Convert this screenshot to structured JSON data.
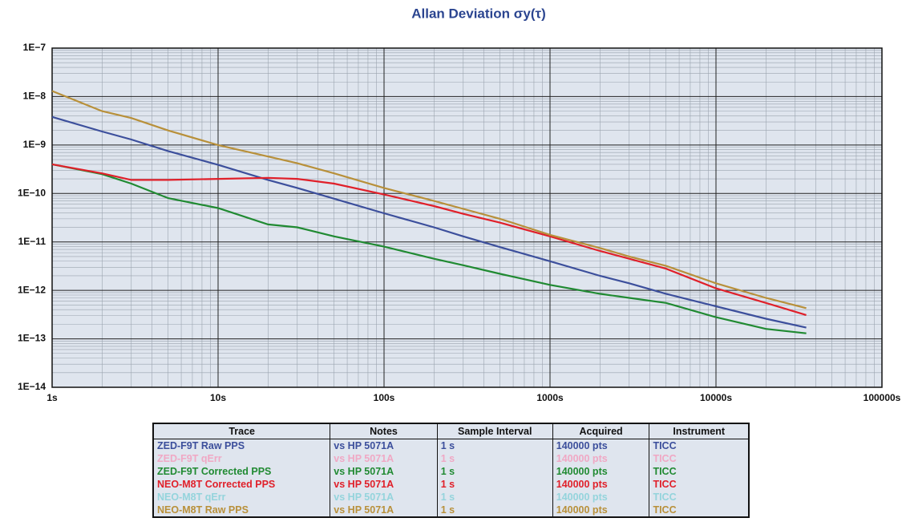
{
  "chart_data": {
    "type": "line",
    "title": "Allan Deviation σy(τ)",
    "log_x": true,
    "log_y": true,
    "grid": true,
    "minor_grid": true,
    "plot_background": "#dfe5ee",
    "x": [
      1,
      2,
      3,
      5,
      10,
      20,
      30,
      50,
      100,
      200,
      300,
      500,
      1000,
      2000,
      3000,
      5000,
      10000,
      20000,
      35000
    ],
    "xlim": [
      1,
      100000
    ],
    "xticks": [
      {
        "value": 1,
        "label": "1s"
      },
      {
        "value": 10,
        "label": "10s"
      },
      {
        "value": 100,
        "label": "100s"
      },
      {
        "value": 1000,
        "label": "1000s"
      },
      {
        "value": 10000,
        "label": "10000s"
      },
      {
        "value": 100000,
        "label": "100000s"
      }
    ],
    "ylim": [
      1e-14,
      1e-07
    ],
    "yticks": [
      {
        "value": 1e-14,
        "label": "1E−14"
      },
      {
        "value": 1e-13,
        "label": "1E−13"
      },
      {
        "value": 1e-12,
        "label": "1E−12"
      },
      {
        "value": 1e-11,
        "label": "1E−11"
      },
      {
        "value": 1e-10,
        "label": "1E−10"
      },
      {
        "value": 1e-09,
        "label": "1E−9"
      },
      {
        "value": 1e-08,
        "label": "1E−8"
      },
      {
        "value": 1e-07,
        "label": "1E−7"
      }
    ],
    "series": [
      {
        "color": "#3c4f9c",
        "values": [
          3.8e-09,
          1.9e-09,
          1.3e-09,
          7.5e-10,
          3.9e-10,
          1.9e-10,
          1.3e-10,
          7.8e-11,
          3.9e-11,
          2e-11,
          1.3e-11,
          7.8e-12,
          4e-12,
          2e-12,
          1.4e-12,
          8.5e-13,
          4.7e-13,
          2.6e-13,
          1.7e-13
        ]
      },
      {
        "color": "#208a32",
        "values": [
          4e-10,
          2.5e-10,
          1.6e-10,
          8e-11,
          5e-11,
          2.3e-11,
          2e-11,
          1.3e-11,
          8e-12,
          4.5e-12,
          3.3e-12,
          2.2e-12,
          1.3e-12,
          8.5e-13,
          7e-13,
          5.5e-13,
          2.8e-13,
          1.6e-13,
          1.3e-13
        ]
      },
      {
        "color": "#e0202a",
        "values": [
          4e-10,
          2.6e-10,
          1.9e-10,
          1.9e-10,
          2e-10,
          2.1e-10,
          2e-10,
          1.6e-10,
          9.5e-11,
          5.5e-11,
          3.8e-11,
          2.5e-11,
          1.3e-11,
          6.5e-12,
          4.5e-12,
          2.8e-12,
          1.1e-12,
          5.5e-13,
          3.1e-13
        ]
      },
      {
        "color": "#b8903a",
        "values": [
          1.3e-08,
          5e-09,
          3.6e-09,
          2e-09,
          1e-09,
          5.8e-10,
          4.2e-10,
          2.6e-10,
          1.3e-10,
          7e-11,
          4.8e-11,
          3e-11,
          1.4e-11,
          7.5e-12,
          5e-12,
          3.2e-12,
          1.4e-12,
          7e-13,
          4.3e-13
        ]
      }
    ],
    "table": {
      "columns": [
        "Trace",
        "Notes",
        "Sample Interval",
        "Acquired",
        "Instrument"
      ],
      "rows": [
        [
          "ZED-F9T Raw PPS",
          "vs HP 5071A",
          "1 s",
          "140000 pts",
          "TICC"
        ],
        [
          "ZED-F9T qErr",
          "vs HP 5071A",
          "1 s",
          "140000 pts",
          "TICC"
        ],
        [
          "ZED-F9T Corrected PPS",
          "vs HP 5071A",
          "1 s",
          "140000 pts",
          "TICC"
        ],
        [
          "NEO-M8T Corrected PPS",
          "vs HP 5071A",
          "1 s",
          "140000 pts",
          "TICC"
        ],
        [
          "NEO-M8T qErr",
          "vs HP 5071A",
          "1 s",
          "140000 pts",
          "TICC"
        ],
        [
          "NEO-M8T Raw PPS",
          "vs HP 5071A",
          "1 s",
          "140000 pts",
          "TICC"
        ]
      ],
      "row_colors": [
        "#3c4f9c",
        "#f0a8c4",
        "#208a32",
        "#e0202a",
        "#94d4dc",
        "#b8903a"
      ]
    }
  }
}
